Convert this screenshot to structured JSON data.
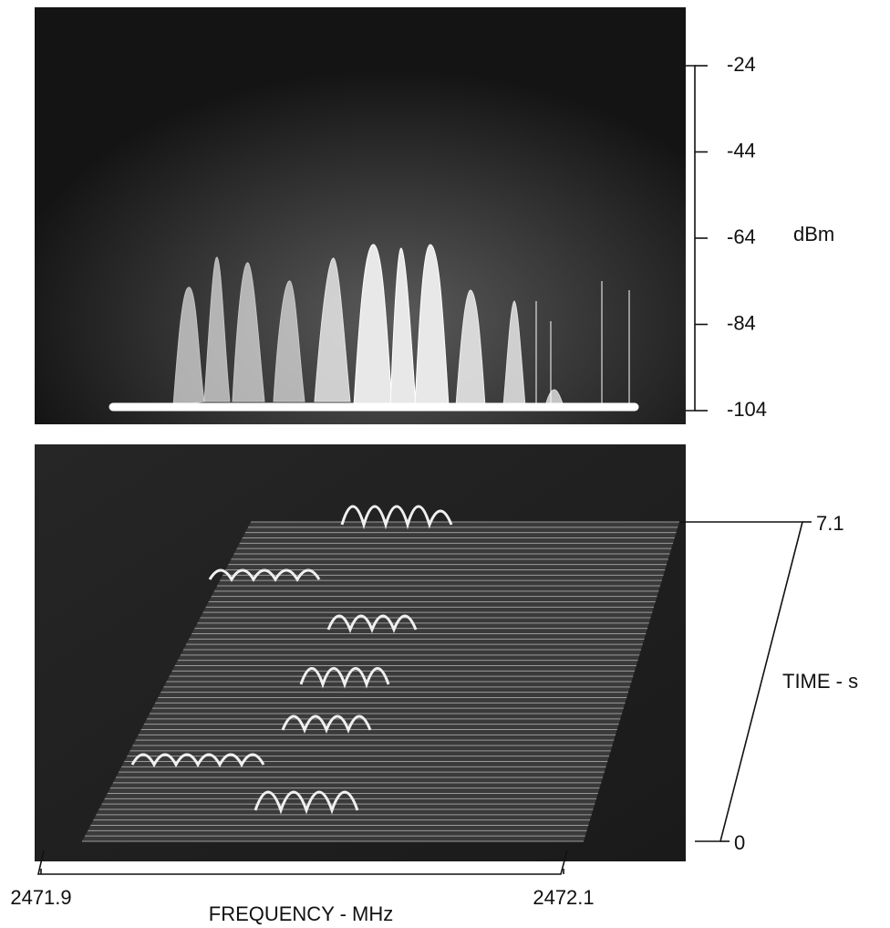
{
  "chart_data": [
    {
      "type": "spectrum",
      "ylabel": "dBm",
      "ylim": [
        -104,
        -24
      ],
      "yticks": [
        -24,
        -44,
        -64,
        -84,
        -104
      ]
    },
    {
      "type": "waterfall",
      "xlabel": "FREQUENCY - MHz",
      "ylabel": "TIME - s",
      "xlim": [
        2471.9,
        2472.1
      ],
      "xticks": [
        2471.9,
        2472.1
      ],
      "ylim": [
        0,
        7.1
      ],
      "yticks": [
        0,
        7.1
      ]
    }
  ]
}
